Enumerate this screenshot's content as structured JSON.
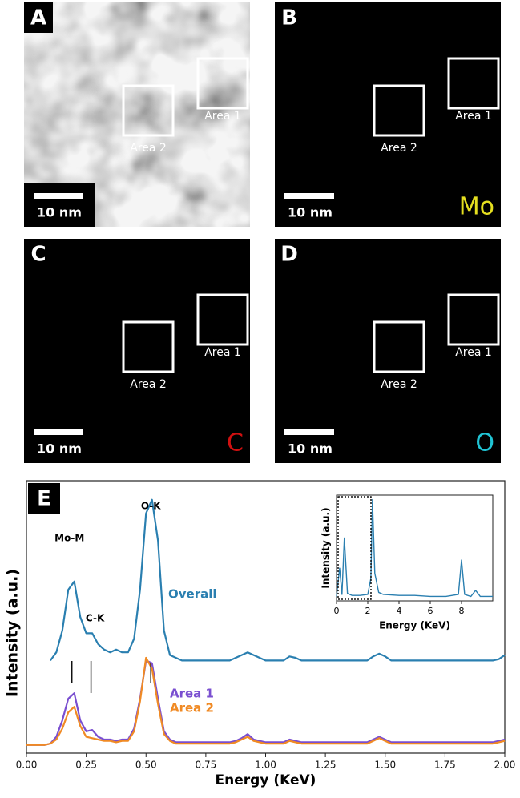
{
  "panels": [
    {
      "label": "A",
      "scale_bar": "10 nm",
      "areas": [
        "Area 1",
        "Area 2"
      ],
      "color": "#9a9a9a",
      "kind": "image"
    },
    {
      "label": "B",
      "scale_bar": "10 nm",
      "areas": [
        "Area 1",
        "Area 2"
      ],
      "element": "Mo",
      "color": "#e6e020",
      "kind": "map"
    },
    {
      "label": "C",
      "scale_bar": "10 nm",
      "areas": [
        "Area 1",
        "Area 2"
      ],
      "element": "C",
      "color": "#d01010",
      "kind": "map"
    },
    {
      "label": "D",
      "scale_bar": "10 nm",
      "areas": [
        "Area 1",
        "Area 2"
      ],
      "element": "O",
      "color": "#20c4d4",
      "kind": "map"
    }
  ],
  "chart_data": [
    {
      "type": "line",
      "panel_label": "E",
      "x_label": "Energy (KeV)",
      "y_label": "Intensity (a.u.)",
      "xlim": [
        0,
        2
      ],
      "ylim": [
        0,
        100
      ],
      "xticks": [
        {
          "value": 0,
          "label": "0.00"
        },
        {
          "value": 0.25,
          "label": "0.25"
        },
        {
          "value": 0.5,
          "label": "0.50"
        },
        {
          "value": 0.75,
          "label": "0.75"
        },
        {
          "value": 1,
          "label": "1.00"
        },
        {
          "value": 1.25,
          "label": "1.25"
        },
        {
          "value": 1.5,
          "label": "1.50"
        },
        {
          "value": 1.75,
          "label": "1.75"
        },
        {
          "value": 2,
          "label": "2.00"
        }
      ],
      "peaks": [
        {
          "text": "Mo-M",
          "x": 0.19
        },
        {
          "text": "C-K",
          "x": 0.27
        },
        {
          "text": "O-K",
          "x": 0.52
        }
      ],
      "x": [
        0,
        0.025,
        0.05,
        0.075,
        0.1,
        0.125,
        0.15,
        0.175,
        0.2,
        0.225,
        0.25,
        0.275,
        0.3,
        0.325,
        0.35,
        0.375,
        0.4,
        0.425,
        0.45,
        0.475,
        0.5,
        0.525,
        0.55,
        0.575,
        0.6,
        0.625,
        0.65,
        0.675,
        0.7,
        0.725,
        0.75,
        0.775,
        0.8,
        0.825,
        0.85,
        0.875,
        0.9,
        0.925,
        0.95,
        0.975,
        1,
        1.025,
        1.05,
        1.075,
        1.1,
        1.125,
        1.15,
        1.175,
        1.2,
        1.225,
        1.25,
        1.275,
        1.3,
        1.325,
        1.35,
        1.375,
        1.4,
        1.425,
        1.45,
        1.475,
        1.5,
        1.525,
        1.55,
        1.575,
        1.6,
        1.625,
        1.65,
        1.675,
        1.7,
        1.725,
        1.75,
        1.775,
        1.8,
        1.825,
        1.85,
        1.875,
        1.9,
        1.925,
        1.95,
        1.975,
        2
      ],
      "series": [
        {
          "name": "Overall",
          "color": "#2a7fb0",
          "values": [
            null,
            null,
            null,
            null,
            34,
            37,
            45,
            60,
            63,
            50,
            44,
            44,
            40,
            38,
            37,
            38,
            37,
            37,
            42,
            60,
            88,
            93,
            78,
            45,
            36,
            35,
            34,
            34,
            34,
            34,
            34,
            34,
            34,
            34,
            34,
            35,
            36,
            37,
            36,
            35,
            34,
            34,
            34,
            34,
            35.5,
            35,
            34,
            34,
            34,
            34,
            34,
            34,
            34,
            34,
            34,
            34,
            34,
            34,
            35.5,
            36.5,
            35.5,
            34,
            34,
            34,
            34,
            34,
            34,
            34,
            34,
            34,
            34,
            34,
            34,
            34,
            34,
            34,
            34,
            34,
            34,
            34.5,
            36
          ]
        },
        {
          "name": "Area 1",
          "color": "#7a4fd0",
          "values": [
            3,
            3,
            3,
            3,
            3.5,
            6,
            12,
            20,
            22,
            12,
            8,
            8.5,
            6,
            5,
            5,
            4.5,
            5,
            5,
            9,
            20,
            34,
            33,
            20,
            8,
            5,
            4,
            4,
            4,
            4,
            4,
            4,
            4,
            4,
            4,
            4,
            4.5,
            5.5,
            7,
            5,
            4.5,
            4,
            4,
            4,
            4,
            5,
            4.5,
            4,
            4,
            4,
            4,
            4,
            4,
            4,
            4,
            4,
            4,
            4,
            4,
            5,
            6,
            5,
            4,
            4,
            4,
            4,
            4,
            4,
            4,
            4,
            4,
            4,
            4,
            4,
            4,
            4,
            4,
            4,
            4,
            4,
            4.5,
            5
          ]
        },
        {
          "name": "Area 2",
          "color": "#f08a24",
          "values": [
            3,
            3,
            3,
            3,
            3.5,
            5,
            9,
            15,
            17,
            10,
            6,
            5.5,
            5,
            4.5,
            4.5,
            4,
            4.5,
            4.5,
            8,
            19,
            35,
            31,
            18,
            7,
            4.5,
            3.5,
            3.5,
            3.5,
            3.5,
            3.5,
            3.5,
            3.5,
            3.5,
            3.5,
            3.5,
            4,
            5,
            6,
            4.5,
            4,
            3.5,
            3.5,
            3.5,
            3.5,
            4.5,
            4,
            3.5,
            3.5,
            3.5,
            3.5,
            3.5,
            3.5,
            3.5,
            3.5,
            3.5,
            3.5,
            3.5,
            3.5,
            4.5,
            5.5,
            4.5,
            3.5,
            3.5,
            3.5,
            3.5,
            3.5,
            3.5,
            3.5,
            3.5,
            3.5,
            3.5,
            3.5,
            3.5,
            3.5,
            3.5,
            3.5,
            3.5,
            3.5,
            3.5,
            4,
            4.5
          ]
        }
      ]
    },
    {
      "type": "line",
      "x_label": "Energy (KeV)",
      "y_label": "Intensity (a.u.)",
      "xlim": [
        0,
        10
      ],
      "ylim": [
        0,
        100
      ],
      "xticks": [
        0,
        2,
        4,
        6,
        8
      ],
      "highlight": [
        0,
        2
      ],
      "x": [
        0,
        0.2,
        0.35,
        0.5,
        0.7,
        1,
        1.5,
        2,
        2.2,
        2.3,
        2.45,
        2.7,
        3,
        4,
        5,
        6,
        7,
        7.8,
        8,
        8.2,
        8.6,
        8.9,
        9.2,
        10
      ],
      "series": [
        {
          "color": "#2a7fb0",
          "values": [
            2,
            30,
            4,
            60,
            5,
            3,
            3,
            4,
            20,
            98,
            25,
            6,
            4,
            3,
            3,
            2,
            2,
            4,
            38,
            4,
            2,
            8,
            2,
            2
          ]
        }
      ]
    }
  ]
}
